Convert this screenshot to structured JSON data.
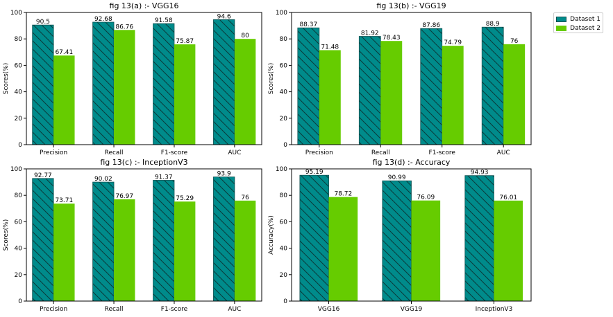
{
  "colors": {
    "dataset1": "#008b8b",
    "dataset2": "#66cc00",
    "hatch": "#0a3a3a"
  },
  "legend": {
    "entries": [
      "Dataset 1",
      "Dataset 2"
    ],
    "placement": "top-right, outside plots"
  },
  "chart_data": [
    {
      "type": "bar",
      "title": "fig 13(a) :- VGG16",
      "ylabel": "Scores(%)",
      "xlabel": "",
      "ylim": [
        0,
        100
      ],
      "yticks": [
        0,
        20,
        40,
        60,
        80,
        100
      ],
      "categories": [
        "Precision",
        "Recall",
        "F1-score",
        "AUC"
      ],
      "series": [
        {
          "name": "Dataset 1",
          "values": [
            90.5,
            92.68,
            91.58,
            94.6
          ],
          "labels": [
            "90.5",
            "92.68",
            "91.58",
            "94.6"
          ]
        },
        {
          "name": "Dataset 2",
          "values": [
            67.41,
            86.76,
            75.87,
            80
          ],
          "labels": [
            "67.41",
            "86.76",
            "75.87",
            "80"
          ]
        }
      ]
    },
    {
      "type": "bar",
      "title": "fig 13(b) :- VGG19",
      "ylabel": "Scores(%)",
      "xlabel": "",
      "ylim": [
        0,
        100
      ],
      "yticks": [
        0,
        20,
        40,
        60,
        80,
        100
      ],
      "categories": [
        "Precision",
        "Recall",
        "F1-score",
        "AUC"
      ],
      "series": [
        {
          "name": "Dataset 1",
          "values": [
            88.37,
            81.92,
            87.86,
            88.9
          ],
          "labels": [
            "88.37",
            "81.92",
            "87.86",
            "88.9"
          ]
        },
        {
          "name": "Dataset 2",
          "values": [
            71.48,
            78.43,
            74.79,
            76
          ],
          "labels": [
            "71.48",
            "78.43",
            "74.79",
            "76"
          ]
        }
      ]
    },
    {
      "type": "bar",
      "title": "fig 13(c) :- InceptionV3",
      "ylabel": "Scores(%)",
      "xlabel": "",
      "ylim": [
        0,
        100
      ],
      "yticks": [
        0,
        20,
        40,
        60,
        80,
        100
      ],
      "categories": [
        "Precision",
        "Recall",
        "F1-score",
        "AUC"
      ],
      "series": [
        {
          "name": "Dataset 1",
          "values": [
            92.77,
            90.02,
            91.37,
            93.9
          ],
          "labels": [
            "92.77",
            "90.02",
            "91.37",
            "93.9"
          ]
        },
        {
          "name": "Dataset 2",
          "values": [
            73.71,
            76.97,
            75.29,
            76
          ],
          "labels": [
            "73.71",
            "76.97",
            "75.29",
            "76"
          ]
        }
      ]
    },
    {
      "type": "bar",
      "title": "fig 13(d) :- Accuracy",
      "ylabel": "Accuracy(%)",
      "xlabel": "",
      "ylim": [
        0,
        100
      ],
      "yticks": [
        0,
        20,
        40,
        60,
        80,
        100
      ],
      "categories": [
        "VGG16",
        "VGG19",
        "InceptionV3"
      ],
      "series": [
        {
          "name": "Dataset 1",
          "values": [
            95.19,
            90.99,
            94.93
          ],
          "labels": [
            "95.19",
            "90.99",
            "94.93"
          ]
        },
        {
          "name": "Dataset 2",
          "values": [
            78.72,
            76.09,
            76.01
          ],
          "labels": [
            "78.72",
            "76.09",
            "76.01"
          ]
        }
      ]
    }
  ]
}
